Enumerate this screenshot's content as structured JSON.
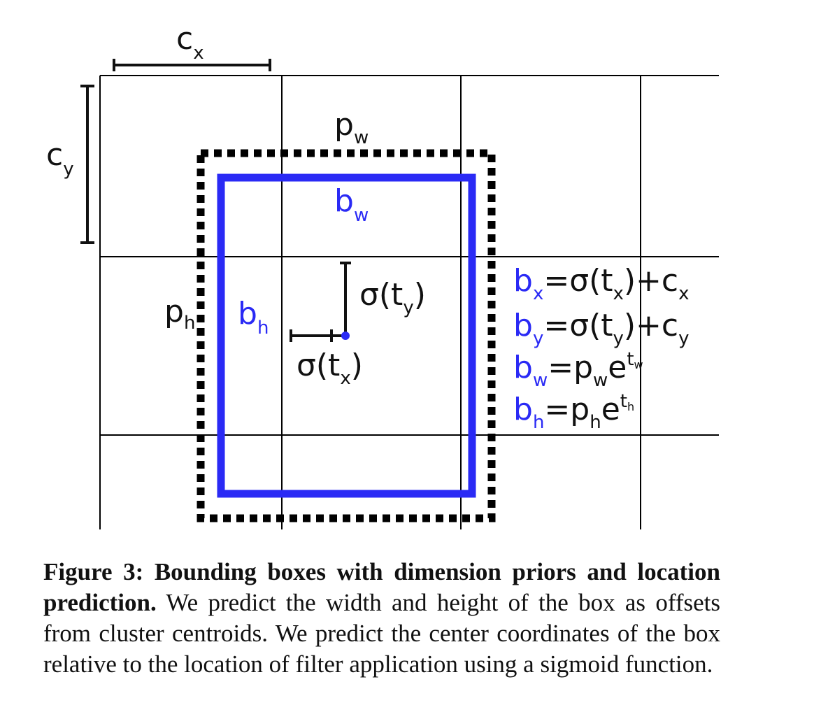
{
  "colors": {
    "ink": "#111111",
    "predicted_box": "#2a2af5",
    "grid": "#000000"
  },
  "diagram": {
    "cx_label": {
      "base": "c",
      "sub": "x"
    },
    "cy_label": {
      "base": "c",
      "sub": "y"
    },
    "pw_label": {
      "base": "p",
      "sub": "w"
    },
    "ph_label": {
      "base": "p",
      "sub": "h"
    },
    "bw_label": {
      "base": "b",
      "sub": "w"
    },
    "bh_label": {
      "base": "b",
      "sub": "h"
    },
    "sigma_ty": {
      "pre": "σ(t",
      "sub": "y",
      "post": ")"
    },
    "sigma_tx": {
      "pre": "σ(t",
      "sub": "x",
      "post": ")"
    },
    "equations": [
      {
        "lhs": "b",
        "lhs_sub": "x",
        "rhs_1": "=σ(t",
        "rhs_sub_1": "x",
        "rhs_2": ")+c",
        "rhs_sub_2": "x"
      },
      {
        "lhs": "b",
        "lhs_sub": "y",
        "rhs_1": "=σ(t",
        "rhs_sub_1": "y",
        "rhs_2": ")+c",
        "rhs_sub_2": "y"
      },
      {
        "lhs": "b",
        "lhs_sub": "w",
        "rhs_1": "=p",
        "rhs_sub_1": "w",
        "rhs_2": "e",
        "sup": "t",
        "sup_sub": "w"
      },
      {
        "lhs": "b",
        "lhs_sub": "h",
        "rhs_1": "=p",
        "rhs_sub_1": "h",
        "rhs_2": "e",
        "sup": "t",
        "sup_sub": "h"
      }
    ]
  },
  "caption": {
    "label": "Figure 3:",
    "title": "Bounding boxes with dimension priors and location prediction.",
    "body": "We predict the width and height of the box as offsets from cluster centroids. We predict the center coordinates of the box relative to the location of filter application using a sigmoid function."
  }
}
